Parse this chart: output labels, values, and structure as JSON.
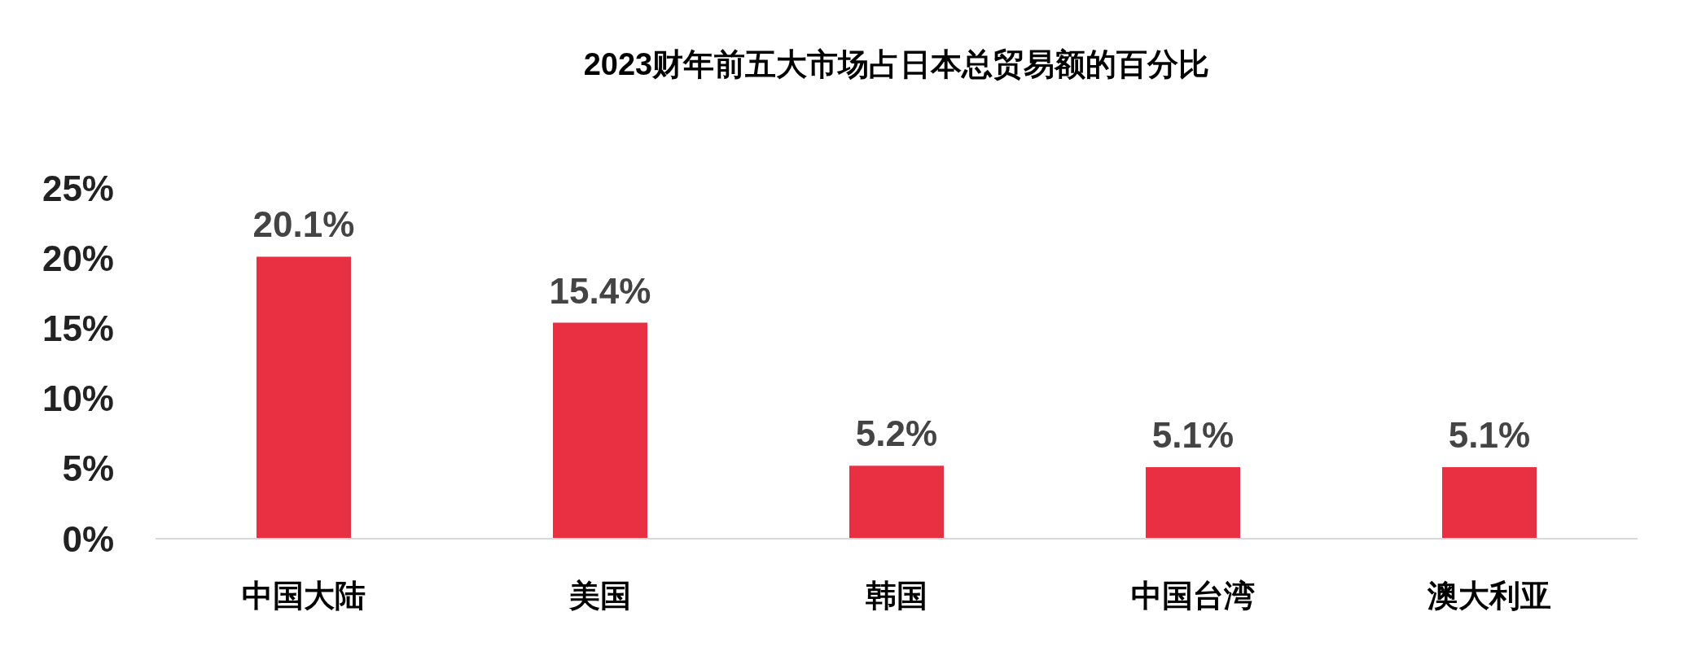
{
  "chart_data": {
    "type": "bar",
    "title": "2023财年前五大市场占日本总贸易额的百分比",
    "categories": [
      "中国大陆",
      "美国",
      "韩国",
      "中国台湾",
      "澳大利亚"
    ],
    "values": [
      20.1,
      15.4,
      5.2,
      5.1,
      5.1
    ],
    "value_labels": [
      "20.1%",
      "15.4%",
      "5.2%",
      "5.1%",
      "5.1%"
    ],
    "color": "#e83042",
    "ylim": [
      0,
      25
    ],
    "yticks": [
      {
        "value": 0,
        "label": "0%"
      },
      {
        "value": 5,
        "label": "5%"
      },
      {
        "value": 10,
        "label": "10%"
      },
      {
        "value": 15,
        "label": "15%"
      },
      {
        "value": 20,
        "label": "20%"
      },
      {
        "value": 25,
        "label": "25%"
      }
    ],
    "grid": false
  }
}
